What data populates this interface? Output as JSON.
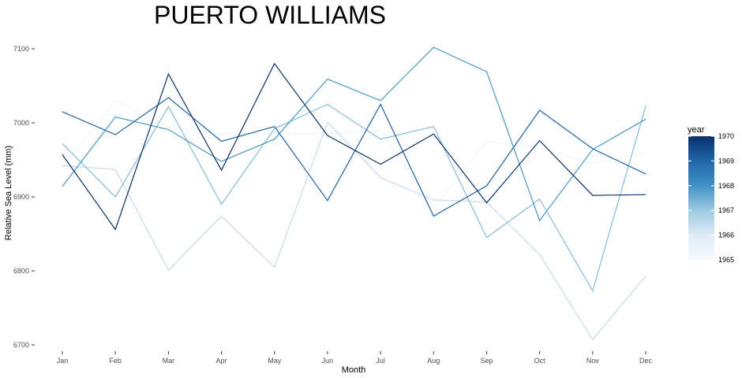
{
  "chart_data": {
    "type": "line",
    "title": "PUERTO WILLIAMS",
    "xlabel": "Month",
    "ylabel": "Relative Sea Level (mm)",
    "categories": [
      "Jan",
      "Feb",
      "Mar",
      "Apr",
      "May",
      "Jun",
      "Jul",
      "Aug",
      "Sep",
      "Oct",
      "Nov",
      "Dec"
    ],
    "ylim": [
      6690,
      7110
    ],
    "yticks": [
      6700,
      6800,
      6900,
      7000,
      7100
    ],
    "grid": false,
    "legend": {
      "title": "year",
      "position": "right",
      "type": "colorbar",
      "min": 1965,
      "max": 1970,
      "labels": [
        "1970",
        "1969",
        "1968",
        "1967",
        "1966",
        "1965"
      ],
      "color_low": "#f7fbff",
      "color_high": "#08306b"
    },
    "series": [
      {
        "year": 1965,
        "color": "#eef5fc",
        "values": [
          6940,
          7030,
          6995,
          6985,
          6985,
          6985,
          6990,
          6885,
          6975,
          6965,
          6945,
          6960
        ]
      },
      {
        "year": 1966,
        "color": "#c6dbef",
        "values": [
          6942,
          6937,
          6801,
          6874,
          6805,
          7001,
          6926,
          6896,
          6893,
          6822,
          6707,
          6793
        ]
      },
      {
        "year": 1967,
        "color": "#84bcdb",
        "values": [
          6972,
          6900,
          7022,
          6890,
          6992,
          7025,
          6978,
          6995,
          6845,
          6897,
          6773,
          7023
        ]
      },
      {
        "year": 1968,
        "color": "#4a98c9",
        "values": [
          6914,
          7008,
          6991,
          6948,
          6978,
          7059,
          7030,
          7102,
          7069,
          6868,
          6964,
          7005
        ]
      },
      {
        "year": 1969,
        "color": "#1d64a9",
        "values": [
          7015,
          6984,
          7034,
          6975,
          6995,
          6895,
          7025,
          6874,
          6915,
          7017,
          6965,
          6931
        ]
      },
      {
        "year": 1970,
        "color": "#08306b",
        "values": [
          6957,
          6856,
          7066,
          6936,
          7080,
          6983,
          6944,
          6985,
          6892,
          6976,
          6902,
          6903
        ]
      }
    ]
  }
}
